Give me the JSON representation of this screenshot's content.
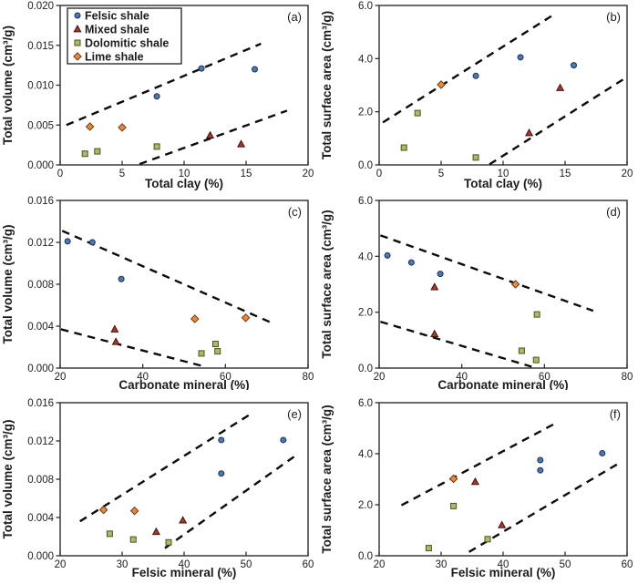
{
  "figure": {
    "panels": [
      "(a)",
      "(b)",
      "(c)",
      "(d)",
      "(e)",
      "(f)"
    ]
  },
  "series_styles": {
    "felsic": {
      "fill": "#4c78b5",
      "stroke": "#1b3055"
    },
    "mixed": {
      "fill": "#a9392c",
      "stroke": "#431009"
    },
    "dolomitic": {
      "fill": "#a7bd64",
      "stroke": "#47541f"
    },
    "lime": {
      "fill": "#e98840",
      "stroke": "#6b3a0e"
    }
  },
  "colors": {
    "frame": "#2e2e2e",
    "trend_line": "#0c0c0c",
    "text": "#1c1c1c",
    "background": "#ffffff"
  },
  "legend_labels": [
    "Felsic shale",
    "Mixed shale",
    "Dolomitic shale",
    "Lime shale"
  ],
  "chart_data": [
    {
      "type": "scatter",
      "panel": "(a)",
      "xlabel": "Total clay (%)",
      "ylabel": "Total volume (cm³/g)",
      "xlim": [
        0,
        20
      ],
      "ylim": [
        0,
        0.02
      ],
      "grid": false,
      "legend_position": "top-left-inside",
      "show_legend": true,
      "xticks": [
        {
          "v": 0,
          "l": "0"
        },
        {
          "v": 5,
          "l": "5"
        },
        {
          "v": 10,
          "l": "10"
        },
        {
          "v": 15,
          "l": "15"
        },
        {
          "v": 20,
          "l": "20"
        }
      ],
      "yticks": [
        {
          "v": 0,
          "l": "0.000"
        },
        {
          "v": 0.005,
          "l": "0.005"
        },
        {
          "v": 0.01,
          "l": "0.010"
        },
        {
          "v": 0.015,
          "l": "0.015"
        },
        {
          "v": 0.02,
          "l": "0.020"
        }
      ],
      "series": [
        {
          "name": "Felsic shale",
          "key": "felsic",
          "marker": "circle",
          "points": [
            [
              7.8,
              0.0086
            ],
            [
              11.4,
              0.0121
            ],
            [
              15.7,
              0.012
            ]
          ]
        },
        {
          "name": "Mixed shale",
          "key": "mixed",
          "marker": "triangle",
          "points": [
            [
              12.1,
              0.0037
            ],
            [
              14.6,
              0.0026
            ]
          ]
        },
        {
          "name": "Dolomitic shale",
          "key": "dolomitic",
          "marker": "square",
          "points": [
            [
              2,
              0.0014
            ],
            [
              3,
              0.0017
            ],
            [
              7.8,
              0.0023
            ]
          ]
        },
        {
          "name": "Lime shale",
          "key": "lime",
          "marker": "diamond",
          "points": [
            [
              2.4,
              0.0048
            ],
            [
              5,
              0.0047
            ]
          ]
        }
      ],
      "trend_lines": [
        [
          [
            0.5,
            0.005
          ],
          [
            16.2,
            0.0152
          ]
        ],
        [
          [
            6.4,
            0.0001
          ],
          [
            18.3,
            0.0068
          ]
        ]
      ]
    },
    {
      "type": "scatter",
      "panel": "(b)",
      "xlabel": "Total clay (%)",
      "ylabel": "Total surface area (cm³/g)",
      "xlim": [
        0,
        20
      ],
      "ylim": [
        0,
        6
      ],
      "grid": false,
      "show_legend": false,
      "xticks": [
        {
          "v": 0,
          "l": "0"
        },
        {
          "v": 5,
          "l": "5"
        },
        {
          "v": 10,
          "l": "10"
        },
        {
          "v": 15,
          "l": "15"
        },
        {
          "v": 20,
          "l": "20"
        }
      ],
      "yticks": [
        {
          "v": 0,
          "l": "0.0"
        },
        {
          "v": 2,
          "l": "2.0"
        },
        {
          "v": 4,
          "l": "4.0"
        },
        {
          "v": 6,
          "l": "6.0"
        }
      ],
      "series": [
        {
          "name": "Felsic shale",
          "key": "felsic",
          "marker": "circle",
          "points": [
            [
              7.8,
              3.35
            ],
            [
              11.4,
              4.05
            ],
            [
              15.7,
              3.75
            ]
          ]
        },
        {
          "name": "Mixed shale",
          "key": "mixed",
          "marker": "triangle",
          "points": [
            [
              12.1,
              1.2
            ],
            [
              14.6,
              2.9
            ]
          ]
        },
        {
          "name": "Dolomitic shale",
          "key": "dolomitic",
          "marker": "square",
          "points": [
            [
              2,
              0.65
            ],
            [
              3.1,
              1.95
            ],
            [
              7.8,
              0.28
            ]
          ]
        },
        {
          "name": "Lime shale",
          "key": "lime",
          "marker": "diamond",
          "points": [
            [
              5,
              3.02
            ]
          ]
        }
      ],
      "trend_lines": [
        [
          [
            0.3,
            1.6
          ],
          [
            13.9,
            5.6
          ]
        ],
        [
          [
            8.9,
            0.02
          ],
          [
            19.8,
            3.25
          ]
        ]
      ]
    },
    {
      "type": "scatter",
      "panel": "(c)",
      "xlabel": "Carbonate mineral (%)",
      "ylabel": "Total volume (cm³/g)",
      "xlim": [
        20,
        80
      ],
      "ylim": [
        0,
        0.016
      ],
      "grid": false,
      "show_legend": false,
      "xticks": [
        {
          "v": 20,
          "l": "20"
        },
        {
          "v": 40,
          "l": "40"
        },
        {
          "v": 60,
          "l": "60"
        },
        {
          "v": 80,
          "l": "80"
        }
      ],
      "yticks": [
        {
          "v": 0,
          "l": "0.000"
        },
        {
          "v": 0.004,
          "l": "0.004"
        },
        {
          "v": 0.008,
          "l": "0.008"
        },
        {
          "v": 0.012,
          "l": "0.012"
        },
        {
          "v": 0.016,
          "l": "0.016"
        }
      ],
      "series": [
        {
          "name": "Felsic shale",
          "key": "felsic",
          "marker": "circle",
          "points": [
            [
              21.8,
              0.0121
            ],
            [
              27.8,
              0.012
            ],
            [
              34.8,
              0.0085
            ]
          ]
        },
        {
          "name": "Mixed shale",
          "key": "mixed",
          "marker": "triangle",
          "points": [
            [
              33.2,
              0.0037
            ],
            [
              33.5,
              0.0025
            ]
          ]
        },
        {
          "name": "Dolomitic shale",
          "key": "dolomitic",
          "marker": "square",
          "points": [
            [
              54.2,
              0.0014
            ],
            [
              57.6,
              0.0023
            ],
            [
              58.1,
              0.0016
            ]
          ]
        },
        {
          "name": "Lime shale",
          "key": "lime",
          "marker": "diamond",
          "points": [
            [
              52.6,
              0.0047
            ],
            [
              64.9,
              0.0048
            ]
          ]
        }
      ],
      "trend_lines": [
        [
          [
            20.5,
            0.0131
          ],
          [
            71.3,
            0.0043
          ]
        ],
        [
          [
            20.2,
            0.0037
          ],
          [
            55.4,
            0.0001
          ]
        ]
      ]
    },
    {
      "type": "scatter",
      "panel": "(d)",
      "xlabel": "Carbonate mineral (%)",
      "ylabel": "Total surface area (cm³/g)",
      "xlim": [
        20,
        80
      ],
      "ylim": [
        0,
        6
      ],
      "grid": false,
      "show_legend": false,
      "xticks": [
        {
          "v": 20,
          "l": "20"
        },
        {
          "v": 40,
          "l": "40"
        },
        {
          "v": 60,
          "l": "60"
        },
        {
          "v": 80,
          "l": "80"
        }
      ],
      "yticks": [
        {
          "v": 0,
          "l": "0.0"
        },
        {
          "v": 2,
          "l": "2.0"
        },
        {
          "v": 4,
          "l": "4.0"
        },
        {
          "v": 6,
          "l": "6.0"
        }
      ],
      "series": [
        {
          "name": "Felsic shale",
          "key": "felsic",
          "marker": "circle",
          "points": [
            [
              22,
              4.03
            ],
            [
              27.8,
              3.78
            ],
            [
              34.8,
              3.37
            ]
          ]
        },
        {
          "name": "Mixed shale",
          "key": "mixed",
          "marker": "triangle",
          "points": [
            [
              33.4,
              2.9
            ],
            [
              33.4,
              1.22
            ]
          ]
        },
        {
          "name": "Dolomitic shale",
          "key": "dolomitic",
          "marker": "square",
          "points": [
            [
              54.5,
              0.62
            ],
            [
              58.2,
              1.92
            ],
            [
              58,
              0.29
            ]
          ]
        },
        {
          "name": "Lime shale",
          "key": "lime",
          "marker": "diamond",
          "points": [
            [
              53,
              3.0
            ]
          ]
        }
      ],
      "trend_lines": [
        [
          [
            20.3,
            4.75
          ],
          [
            71.8,
            2.05
          ]
        ],
        [
          [
            20.3,
            1.66
          ],
          [
            56.9,
            0.05
          ]
        ]
      ]
    },
    {
      "type": "scatter",
      "panel": "(e)",
      "xlabel": "Felsic mineral (%)",
      "ylabel": "Total volume (cm³/g)",
      "xlim": [
        20,
        60
      ],
      "ylim": [
        0,
        0.016
      ],
      "grid": false,
      "show_legend": false,
      "xticks": [
        {
          "v": 20,
          "l": "20"
        },
        {
          "v": 30,
          "l": "30"
        },
        {
          "v": 40,
          "l": "40"
        },
        {
          "v": 50,
          "l": "50"
        },
        {
          "v": 60,
          "l": "60"
        }
      ],
      "yticks": [
        {
          "v": 0,
          "l": "0.000"
        },
        {
          "v": 0.004,
          "l": "0.004"
        },
        {
          "v": 0.008,
          "l": "0.008"
        },
        {
          "v": 0.012,
          "l": "0.012"
        },
        {
          "v": 0.016,
          "l": "0.016"
        }
      ],
      "series": [
        {
          "name": "Felsic shale",
          "key": "felsic",
          "marker": "circle",
          "points": [
            [
              46,
              0.0121
            ],
            [
              46,
              0.0086
            ],
            [
              56,
              0.0121
            ]
          ]
        },
        {
          "name": "Mixed shale",
          "key": "mixed",
          "marker": "triangle",
          "points": [
            [
              35.5,
              0.0025
            ],
            [
              39.8,
              0.0037
            ]
          ]
        },
        {
          "name": "Dolomitic shale",
          "key": "dolomitic",
          "marker": "square",
          "points": [
            [
              28,
              0.0023
            ],
            [
              31.8,
              0.0017
            ],
            [
              37.5,
              0.0014
            ]
          ]
        },
        {
          "name": "Lime shale",
          "key": "lime",
          "marker": "diamond",
          "points": [
            [
              27,
              0.0048
            ],
            [
              32,
              0.0047
            ]
          ]
        }
      ],
      "trend_lines": [
        [
          [
            23.2,
            0.0036
          ],
          [
            51.2,
            0.015
          ]
        ],
        [
          [
            36.9,
            0.0008
          ],
          [
            58.5,
            0.0107
          ]
        ]
      ]
    },
    {
      "type": "scatter",
      "panel": "(f)",
      "xlabel": "Felsic mineral (%)",
      "ylabel": "Total surface area (cm³/g)",
      "xlim": [
        20,
        60
      ],
      "ylim": [
        0,
        6
      ],
      "grid": false,
      "show_legend": false,
      "xticks": [
        {
          "v": 20,
          "l": "20"
        },
        {
          "v": 30,
          "l": "30"
        },
        {
          "v": 40,
          "l": "40"
        },
        {
          "v": 50,
          "l": "50"
        },
        {
          "v": 60,
          "l": "60"
        }
      ],
      "yticks": [
        {
          "v": 0,
          "l": "0.0"
        },
        {
          "v": 2,
          "l": "2.0"
        },
        {
          "v": 4,
          "l": "4.0"
        },
        {
          "v": 6,
          "l": "6.0"
        }
      ],
      "series": [
        {
          "name": "Felsic shale",
          "key": "felsic",
          "marker": "circle",
          "points": [
            [
              46,
              3.75
            ],
            [
              46,
              3.35
            ],
            [
              56,
              4.02
            ]
          ]
        },
        {
          "name": "Mixed shale",
          "key": "mixed",
          "marker": "triangle",
          "points": [
            [
              35.5,
              2.9
            ],
            [
              39.8,
              1.2
            ]
          ]
        },
        {
          "name": "Dolomitic shale",
          "key": "dolomitic",
          "marker": "square",
          "points": [
            [
              28,
              0.3
            ],
            [
              32,
              1.95
            ],
            [
              37.5,
              0.65
            ]
          ]
        },
        {
          "name": "Lime shale",
          "key": "lime",
          "marker": "diamond",
          "points": [
            [
              32,
              3.02
            ]
          ]
        }
      ],
      "trend_lines": [
        [
          [
            23.6,
            1.98
          ],
          [
            48.9,
            5.25
          ]
        ],
        [
          [
            34.5,
            0.15
          ],
          [
            58.5,
            3.6
          ]
        ]
      ]
    }
  ]
}
